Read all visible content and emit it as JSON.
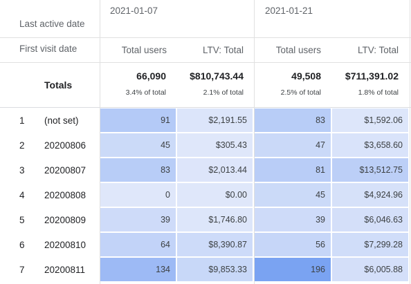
{
  "header": {
    "last_active_label": "Last active date",
    "first_visit_label": "First visit date",
    "totals_label": "Totals",
    "date_groups": [
      {
        "date": "2021-01-07",
        "metric_users": "Total users",
        "metric_ltv": "LTV: Total"
      },
      {
        "date": "2021-01-21",
        "metric_users": "Total users",
        "metric_ltv": "LTV: Total"
      }
    ]
  },
  "totals": [
    {
      "users": "66,090",
      "users_pct": "3.4% of total",
      "ltv": "$810,743.44",
      "ltv_pct": "2.1% of total"
    },
    {
      "users": "49,508",
      "users_pct": "2.5% of total",
      "ltv": "$711,391.02",
      "ltv_pct": "1.8% of total"
    }
  ],
  "rows": [
    {
      "num": "1",
      "label": "(not set)",
      "g1_users": "91",
      "g1_ltv": "$2,191.55",
      "g2_users": "83",
      "g2_ltv": "$1,592.06"
    },
    {
      "num": "2",
      "label": "20200806",
      "g1_users": "45",
      "g1_ltv": "$305.43",
      "g2_users": "47",
      "g2_ltv": "$3,658.60"
    },
    {
      "num": "3",
      "label": "20200807",
      "g1_users": "83",
      "g1_ltv": "$2,013.44",
      "g2_users": "81",
      "g2_ltv": "$13,512.75"
    },
    {
      "num": "4",
      "label": "20200808",
      "g1_users": "0",
      "g1_ltv": "$0.00",
      "g2_users": "45",
      "g2_ltv": "$4,924.96"
    },
    {
      "num": "5",
      "label": "20200809",
      "g1_users": "39",
      "g1_ltv": "$1,746.80",
      "g2_users": "39",
      "g2_ltv": "$6,046.63"
    },
    {
      "num": "6",
      "label": "20200810",
      "g1_users": "64",
      "g1_ltv": "$8,390.87",
      "g2_users": "56",
      "g2_ltv": "$7,299.28"
    },
    {
      "num": "7",
      "label": "20200811",
      "g1_users": "134",
      "g1_ltv": "$9,853.33",
      "g2_users": "196",
      "g2_ltv": "$6,005.88"
    }
  ],
  "colors": {
    "heat_min": "#dfe7fa",
    "heat_max": "#7aa3f2",
    "grid": "#e0e0e0"
  }
}
